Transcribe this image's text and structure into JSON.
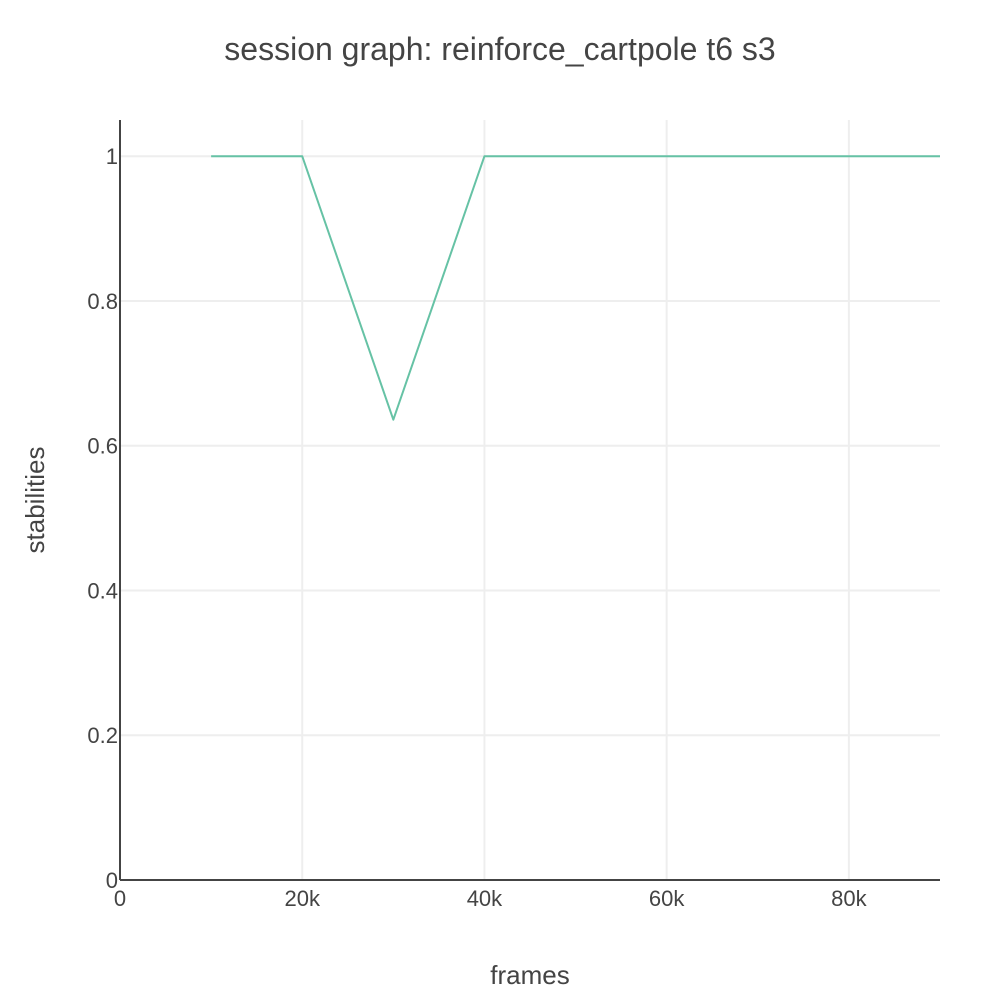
{
  "chart_data": {
    "type": "line",
    "title": "session graph: reinforce_cartpole t6 s3",
    "xlabel": "frames",
    "ylabel": "stabilities",
    "xlim": [
      0,
      90000
    ],
    "ylim": [
      0,
      1.05
    ],
    "x_ticks": [
      {
        "value": 0,
        "label": "0"
      },
      {
        "value": 20000,
        "label": "20k"
      },
      {
        "value": 40000,
        "label": "40k"
      },
      {
        "value": 60000,
        "label": "60k"
      },
      {
        "value": 80000,
        "label": "80k"
      }
    ],
    "y_ticks": [
      {
        "value": 0,
        "label": "0"
      },
      {
        "value": 0.2,
        "label": "0.2"
      },
      {
        "value": 0.4,
        "label": "0.4"
      },
      {
        "value": 0.6,
        "label": "0.6"
      },
      {
        "value": 0.8,
        "label": "0.8"
      },
      {
        "value": 1,
        "label": "1"
      }
    ],
    "grid": true,
    "legend": "none",
    "series": [
      {
        "color": "#66c2a5",
        "x": [
          10000,
          20000,
          30000,
          40000,
          50000,
          60000,
          70000,
          80000,
          90000
        ],
        "y": [
          1,
          1,
          0.636,
          1,
          1,
          1,
          1,
          1,
          1
        ]
      }
    ]
  }
}
